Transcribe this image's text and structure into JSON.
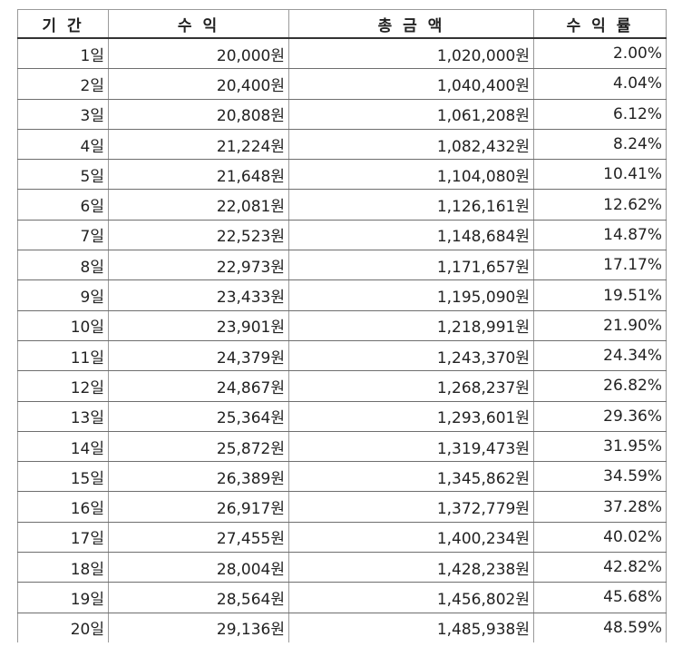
{
  "table": {
    "headers": [
      "기 간",
      "수 익",
      "총 금 액",
      "수 익 률"
    ],
    "rows": [
      [
        "1일",
        "20,000원",
        "1,020,000원",
        "2.00%"
      ],
      [
        "2일",
        "20,400원",
        "1,040,400원",
        "4.04%"
      ],
      [
        "3일",
        "20,808원",
        "1,061,208원",
        "6.12%"
      ],
      [
        "4일",
        "21,224원",
        "1,082,432원",
        "8.24%"
      ],
      [
        "5일",
        "21,648원",
        "1,104,080원",
        "10.41%"
      ],
      [
        "6일",
        "22,081원",
        "1,126,161원",
        "12.62%"
      ],
      [
        "7일",
        "22,523원",
        "1,148,684원",
        "14.87%"
      ],
      [
        "8일",
        "22,973원",
        "1,171,657원",
        "17.17%"
      ],
      [
        "9일",
        "23,433원",
        "1,195,090원",
        "19.51%"
      ],
      [
        "10일",
        "23,901원",
        "1,218,991원",
        "21.90%"
      ],
      [
        "11일",
        "24,379원",
        "1,243,370원",
        "24.34%"
      ],
      [
        "12일",
        "24,867원",
        "1,268,237원",
        "26.82%"
      ],
      [
        "13일",
        "25,364원",
        "1,293,601원",
        "29.36%"
      ],
      [
        "14일",
        "25,872원",
        "1,319,473원",
        "31.95%"
      ],
      [
        "15일",
        "26,389원",
        "1,345,862원",
        "34.59%"
      ],
      [
        "16일",
        "26,917원",
        "1,372,779원",
        "37.28%"
      ],
      [
        "17일",
        "27,455원",
        "1,400,234원",
        "40.02%"
      ],
      [
        "18일",
        "28,004원",
        "1,428,238원",
        "42.82%"
      ],
      [
        "19일",
        "28,564원",
        "1,456,802원",
        "45.68%"
      ],
      [
        "20일",
        "29,136원",
        "1,485,938원",
        "48.59%"
      ]
    ]
  }
}
